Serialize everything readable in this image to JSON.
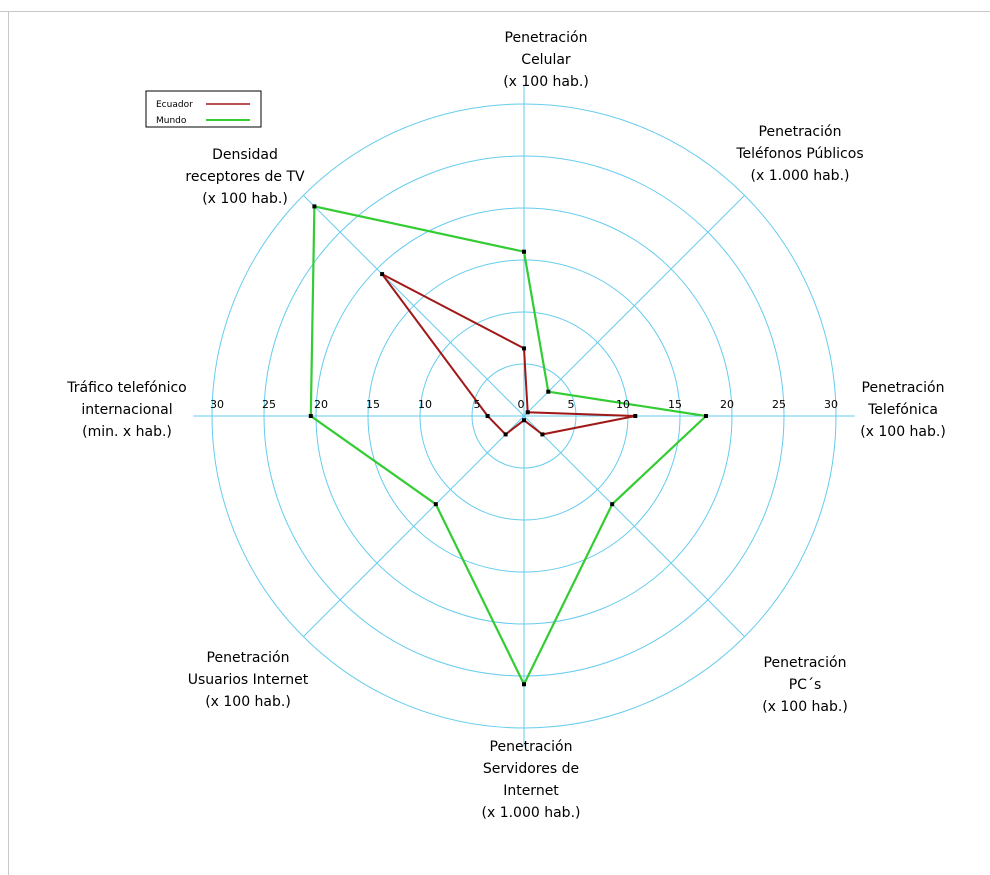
{
  "chart_data": {
    "type": "radar",
    "title": "",
    "rmax": 30,
    "ring_values": [
      5,
      10,
      15,
      20,
      25,
      30
    ],
    "tick_labels": [
      "0",
      "5",
      "10",
      "15",
      "20",
      "25",
      "30"
    ],
    "grid": true,
    "legend_position": "top-left",
    "axes": [
      {
        "label": [
          "Penetración",
          "Celular",
          "(x 100 hab.)"
        ]
      },
      {
        "label": [
          "Penetración",
          "Teléfonos Públicos",
          "(x 1.000 hab.)"
        ]
      },
      {
        "label": [
          "Penetración",
          "Telefónica",
          "(x 100 hab.)"
        ]
      },
      {
        "label": [
          "Penetración",
          "PC´s",
          "(x 100 hab.)"
        ]
      },
      {
        "label": [
          "Penetración",
          "Servidores de",
          "Internet",
          "(x 1.000 hab.)"
        ]
      },
      {
        "label": [
          "Penetración",
          "Usuarios Internet",
          "(x 100 hab.)"
        ]
      },
      {
        "label": [
          "Tráfico telefónico",
          "internacional",
          "(min. x hab.)"
        ]
      },
      {
        "label": [
          "Densidad",
          "receptores de TV",
          "(x 100 hab.)"
        ]
      }
    ],
    "series": [
      {
        "name": "Ecuador",
        "color": "#a01818",
        "values": [
          6.5,
          0.5,
          10.7,
          2.5,
          0.4,
          2.5,
          3.5,
          19.3
        ]
      },
      {
        "name": "Mundo",
        "color": "#33cc33",
        "values": [
          15.8,
          3.3,
          17.5,
          12.0,
          25.8,
          12.0,
          20.5,
          28.5
        ]
      }
    ],
    "grid_color": "#66ccee"
  }
}
